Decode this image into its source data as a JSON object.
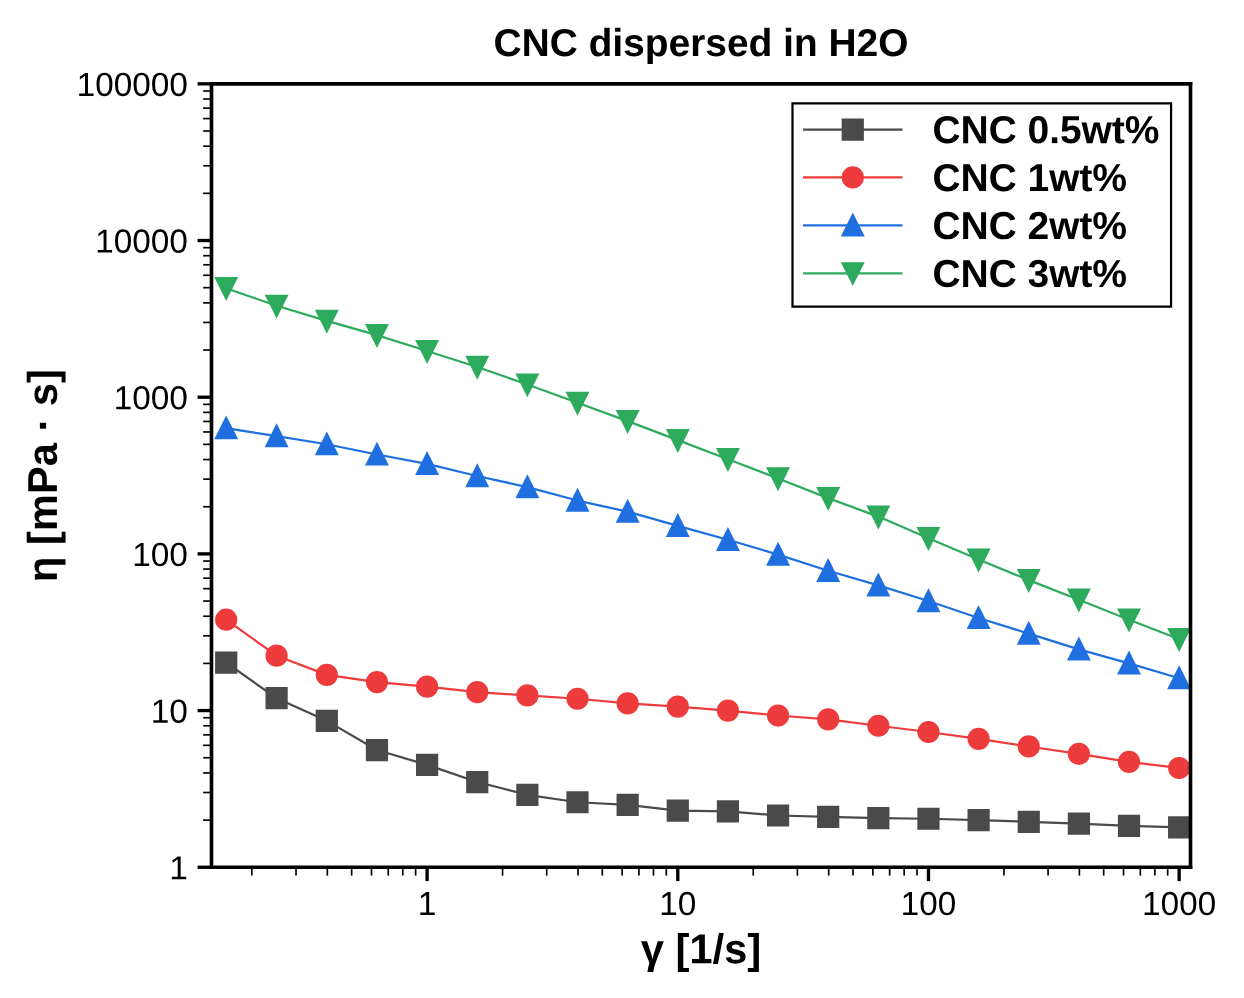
{
  "chart_data": {
    "type": "line",
    "title": "CNC dispersed in H2O",
    "xlabel": "γ [1/s]",
    "ylabel": "η [mPa · s]",
    "log": "xy",
    "grid": false,
    "legend": "top right",
    "x": [
      0.158,
      0.251,
      0.398,
      0.631,
      1,
      1.585,
      2.512,
      3.981,
      6.31,
      10,
      15.85,
      25.12,
      39.81,
      63.1,
      100,
      158.5,
      251.2,
      398.1,
      631,
      1000
    ],
    "xlim": [
      0.138,
      1110
    ],
    "xticks": [
      1,
      10,
      100,
      1000
    ],
    "ylim": [
      1,
      100000
    ],
    "yticks": [
      1,
      10,
      100,
      1000,
      10000,
      100000
    ],
    "series": [
      {
        "name": "CNC 0.5wt%",
        "color": "#4a4a4a",
        "marker": "square",
        "values": [
          20.2,
          12,
          8.6,
          5.6,
          4.5,
          3.5,
          2.9,
          2.6,
          2.5,
          2.3,
          2.27,
          2.14,
          2.1,
          2.06,
          2.04,
          2.0,
          1.95,
          1.9,
          1.84,
          1.8
        ]
      },
      {
        "name": "CNC 1wt%",
        "color": "#ee3b3b",
        "marker": "circle",
        "values": [
          38,
          22.4,
          16.9,
          15.2,
          14.2,
          13.1,
          12.5,
          11.9,
          11.1,
          10.6,
          10,
          9.3,
          8.8,
          8.0,
          7.3,
          6.6,
          5.9,
          5.3,
          4.7,
          4.3
        ]
      },
      {
        "name": "CNC 2wt%",
        "color": "#1f6fe0",
        "marker": "triangle",
        "values": [
          634,
          564,
          501,
          431,
          375,
          314,
          267,
          219,
          186,
          151,
          123,
          99,
          78,
          63,
          50,
          39,
          31,
          24.6,
          20,
          16.1
        ]
      },
      {
        "name": "CNC 3wt%",
        "color": "#2eaa5c",
        "marker": "triangle_down",
        "values": [
          4960,
          3835,
          3070,
          2490,
          1970,
          1560,
          1205,
          921,
          704,
          532,
          402,
          303,
          227,
          173,
          126,
          92,
          68,
          51,
          38,
          28.6
        ]
      }
    ]
  }
}
